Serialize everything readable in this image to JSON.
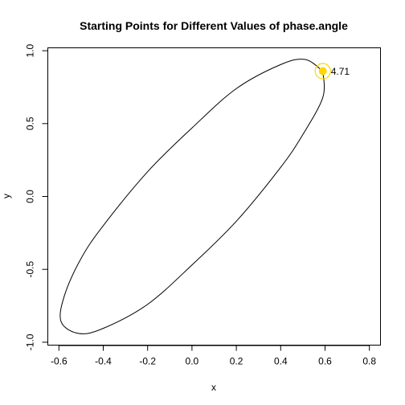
{
  "chart_data": {
    "type": "line",
    "title": "Starting Points for Different Values of phase.angle",
    "xlabel": "x",
    "ylabel": "y",
    "xlim": [
      -0.65,
      0.85
    ],
    "ylim": [
      -1.02,
      1.02
    ],
    "x_ticks": [
      -0.6,
      -0.4,
      -0.2,
      0.0,
      0.2,
      0.4,
      0.6,
      0.8
    ],
    "x_tick_labels": [
      "-0.6",
      "-0.4",
      "-0.2",
      "0.0",
      "0.2",
      "0.4",
      "0.6",
      "0.8"
    ],
    "y_ticks": [
      -1.0,
      -0.5,
      0.0,
      0.5,
      1.0
    ],
    "y_tick_labels": [
      "-1.0",
      "-0.5",
      "0.0",
      "0.5",
      "1.0"
    ],
    "grid": false,
    "curve": {
      "color": "#000000",
      "x": [
        0.59,
        0.51,
        0.4,
        0.2,
        0.0,
        -0.2,
        -0.4,
        -0.5,
        -0.575,
        -0.59,
        -0.51,
        -0.4,
        -0.2,
        0.0,
        0.2,
        0.4,
        0.5,
        0.59,
        0.59
      ],
      "y": [
        0.86,
        0.94,
        0.905,
        0.74,
        0.47,
        0.17,
        -0.2,
        -0.425,
        -0.68,
        -0.86,
        -0.94,
        -0.905,
        -0.74,
        -0.47,
        -0.17,
        0.2,
        0.425,
        0.68,
        0.86
      ]
    },
    "points": [
      {
        "x": 0.59,
        "y": 0.86,
        "label": "4.71",
        "color": "#ffd700"
      }
    ]
  }
}
